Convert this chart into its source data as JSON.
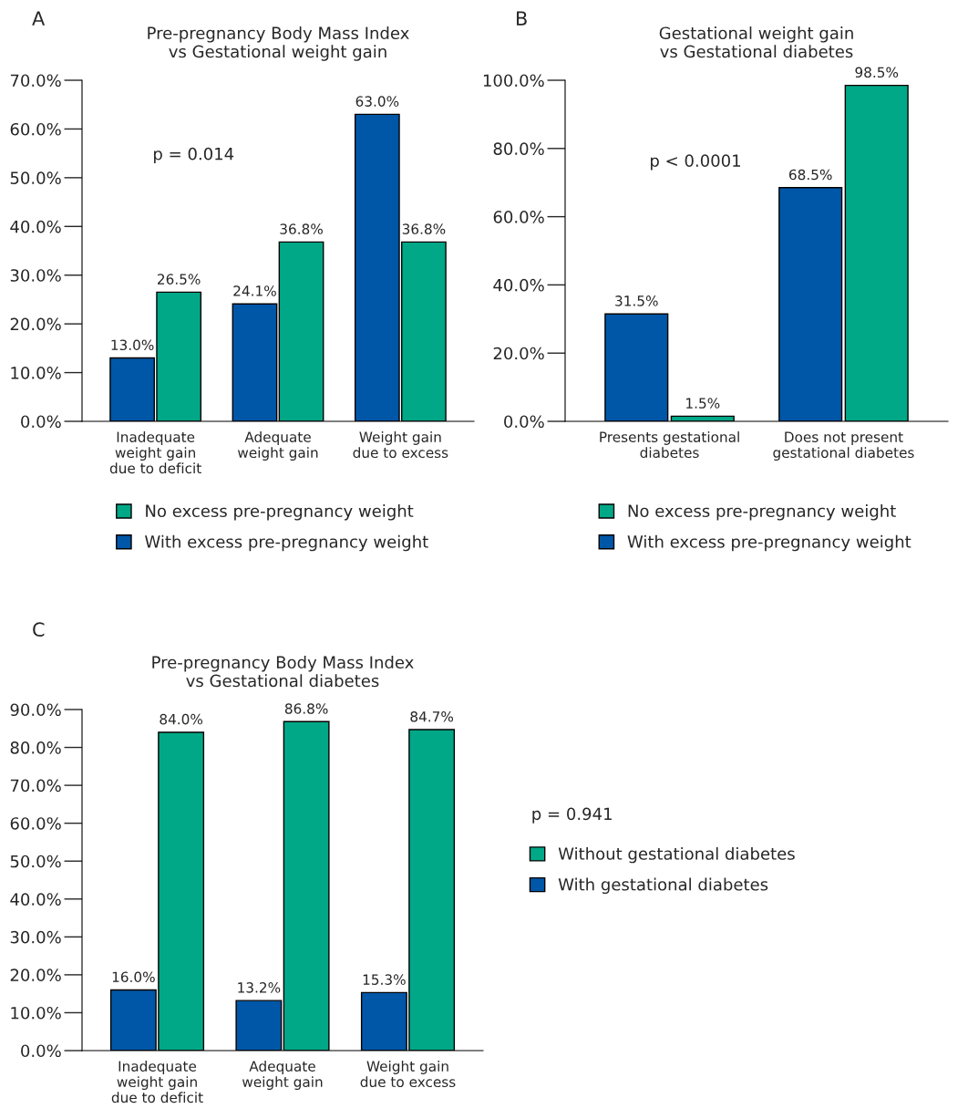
{
  "chart_data": [
    {
      "type": "bar",
      "title": "Pre-pregnancy Body Mass Index\nvs Gestational weight gain",
      "annotations": [
        "A",
        "p = 0.014"
      ],
      "categories": [
        "Inadequate\nweight gain\ndue to deficit",
        "Adequate\nweight gain",
        "Weight gain\ndue to excess"
      ],
      "series": [
        {
          "name": "With excess pre-pregnancy weight",
          "color": "#0057a8",
          "values": [
            13.0,
            24.1,
            63.0
          ],
          "value_labels": [
            "13.0%",
            "24.1%",
            "63.0%"
          ]
        },
        {
          "name": "No excess pre-pregnancy weight",
          "color": "#00a887",
          "values": [
            26.5,
            36.8,
            36.8
          ],
          "value_labels": [
            "26.5%",
            "36.8%",
            "36.8%"
          ]
        }
      ],
      "ylim": [
        0,
        70
      ],
      "yticks": [
        {
          "value": 0,
          "label": "0.0%"
        },
        {
          "value": 10,
          "label": "10.0%"
        },
        {
          "value": 20,
          "label": "20.0%"
        },
        {
          "value": 30,
          "label": "30.0%"
        },
        {
          "value": 40,
          "label": "40.0%"
        },
        {
          "value": 50,
          "label": "50.0%"
        },
        {
          "value": 60,
          "label": "60.0%"
        },
        {
          "value": 70,
          "label": "70.0%"
        }
      ],
      "legend": "bottom",
      "grid": false
    },
    {
      "type": "bar",
      "title": "Gestational weight gain\nvs Gestational diabetes",
      "annotations": [
        "B",
        "p < 0.0001"
      ],
      "categories": [
        "Presents gestational\ndiabetes",
        "Does not present\ngestational diabetes"
      ],
      "series": [
        {
          "name": "With excess pre-pregnancy weight",
          "color": "#0057a8",
          "values": [
            31.5,
            68.5
          ],
          "value_labels": [
            "31.5%",
            "68.5%"
          ]
        },
        {
          "name": "No excess pre-pregnancy weight",
          "color": "#00a887",
          "values": [
            1.5,
            98.5
          ],
          "value_labels": [
            "1.5%",
            "98.5%"
          ]
        }
      ],
      "ylim": [
        0,
        100
      ],
      "yticks": [
        {
          "value": 0,
          "label": "0.0%"
        },
        {
          "value": 20,
          "label": "20.0%"
        },
        {
          "value": 40,
          "label": "40.0%"
        },
        {
          "value": 60,
          "label": "60.0%"
        },
        {
          "value": 80,
          "label": "80.0%"
        },
        {
          "value": 100,
          "label": "100.0%"
        }
      ],
      "legend": "bottom",
      "grid": false
    },
    {
      "type": "bar",
      "title": "Pre-pregnancy Body Mass Index\nvs Gestational diabetes",
      "annotations": [
        "C",
        "p = 0.941"
      ],
      "categories": [
        "Inadequate\nweight gain\ndue to deficit",
        "Adequate\nweight gain",
        "Weight gain\ndue to excess"
      ],
      "series": [
        {
          "name": "With gestational diabetes",
          "color": "#0057a8",
          "values": [
            16.0,
            13.2,
            15.3
          ],
          "value_labels": [
            "16.0%",
            "13.2%",
            "15.3%"
          ]
        },
        {
          "name": "Without gestational diabetes",
          "color": "#00a887",
          "values": [
            84.0,
            86.8,
            84.7
          ],
          "value_labels": [
            "84.0%",
            "86.8%",
            "84.7%"
          ]
        }
      ],
      "ylim": [
        0,
        90
      ],
      "yticks": [
        {
          "value": 0,
          "label": "0.0%"
        },
        {
          "value": 10,
          "label": "10.0%"
        },
        {
          "value": 20,
          "label": "20.0%"
        },
        {
          "value": 30,
          "label": "30.0%"
        },
        {
          "value": 40,
          "label": "40.0%"
        },
        {
          "value": 50,
          "label": "50.0%"
        },
        {
          "value": 60,
          "label": "60.0%"
        },
        {
          "value": 70,
          "label": "70.0%"
        },
        {
          "value": 80,
          "label": "80.0%"
        },
        {
          "value": 90,
          "label": "90.0%"
        }
      ],
      "legend": "right",
      "grid": false
    }
  ]
}
